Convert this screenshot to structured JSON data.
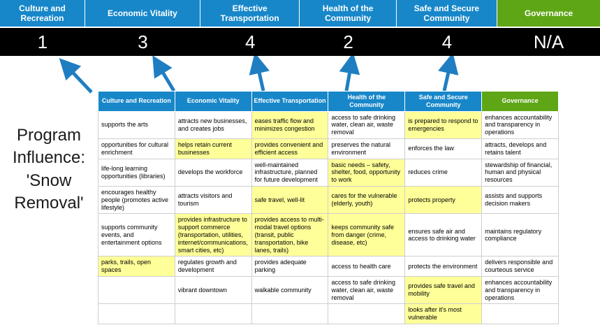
{
  "title": "Program Influence: 'Snow Removal'",
  "pillars": [
    {
      "label": "Culture and Recreation",
      "score": "1",
      "theme": "blue"
    },
    {
      "label": "Economic Vitality",
      "score": "3",
      "theme": "blue"
    },
    {
      "label": "Effective Transportation",
      "score": "4",
      "theme": "blue"
    },
    {
      "label": "Health of the Community",
      "score": "2",
      "theme": "blue"
    },
    {
      "label": "Safe and Secure Community",
      "score": "4",
      "theme": "blue"
    },
    {
      "label": "Governance",
      "score": "N/A",
      "theme": "green"
    }
  ],
  "matrix": {
    "headers": [
      {
        "label": "Culture and Recreation",
        "theme": "blue"
      },
      {
        "label": "Economic Vitality",
        "theme": "blue"
      },
      {
        "label": "Effective Transportation",
        "theme": "blue"
      },
      {
        "label": "Health of the Community",
        "theme": "blue"
      },
      {
        "label": "Safe and Secure Community",
        "theme": "blue"
      },
      {
        "label": "Governance",
        "theme": "green"
      }
    ],
    "rows": [
      [
        {
          "text": "supports the arts",
          "highlight": false
        },
        {
          "text": "attracts new businesses, and creates jobs",
          "highlight": false
        },
        {
          "text": "eases traffic flow and minimizes congestion",
          "highlight": true
        },
        {
          "text": "access to safe drinking water, clean air, waste removal",
          "highlight": false
        },
        {
          "text": "is prepared to respond to emergencies",
          "highlight": true
        },
        {
          "text": "enhances accountability and transparency in operations",
          "highlight": false
        }
      ],
      [
        {
          "text": "opportunities for cultural enrichment",
          "highlight": false
        },
        {
          "text": "helps retain current businesses",
          "highlight": true
        },
        {
          "text": "provides convenient and efficient access",
          "highlight": true
        },
        {
          "text": "preserves the natural environment",
          "highlight": false
        },
        {
          "text": "enforces the law",
          "highlight": false
        },
        {
          "text": "attracts, develops and retains talent",
          "highlight": false
        }
      ],
      [
        {
          "text": "life-long learning opportunities (libraries)",
          "highlight": false
        },
        {
          "text": "develops the workforce",
          "highlight": false
        },
        {
          "text": "well-maintained infrastructure, planned for future development",
          "highlight": false
        },
        {
          "text": "basic needs – safety, shelter, food, opportunity to work",
          "highlight": true
        },
        {
          "text": "reduces crime",
          "highlight": false
        },
        {
          "text": "stewardship of financial, human and physical resources",
          "highlight": false
        }
      ],
      [
        {
          "text": "encourages healthy people (promotes active lifestyle)",
          "highlight": false
        },
        {
          "text": "attracts visitors and tourism",
          "highlight": false
        },
        {
          "text": "safe travel, well-lit",
          "highlight": true
        },
        {
          "text": "cares for the vulnerable (elderly, youth)",
          "highlight": true
        },
        {
          "text": "protects property",
          "highlight": true
        },
        {
          "text": "assists and supports decision makers",
          "highlight": false
        }
      ],
      [
        {
          "text": "supports community events, and entertainment options",
          "highlight": false
        },
        {
          "text": "provides infrastructure to support commerce (transportation, utilities, internet/communications, smart cities, etc)",
          "highlight": true
        },
        {
          "text": "provides access to multi-modal travel options (transit, public transportation, bike lanes, trails)",
          "highlight": true
        },
        {
          "text": "keeps community safe from danger (crime, disease, etc)",
          "highlight": true
        },
        {
          "text": "ensures safe air and access to drinking water",
          "highlight": false
        },
        {
          "text": "maintains regulatory compliance",
          "highlight": false
        }
      ],
      [
        {
          "text": "parks, trails, open spaces",
          "highlight": true
        },
        {
          "text": "regulates growth and development",
          "highlight": false
        },
        {
          "text": "provides adequate parking",
          "highlight": false
        },
        {
          "text": "access to health care",
          "highlight": false
        },
        {
          "text": "protects the environment",
          "highlight": false
        },
        {
          "text": "delivers responsible and courteous service",
          "highlight": false
        }
      ],
      [
        {
          "text": "",
          "highlight": false
        },
        {
          "text": "vibrant downtown",
          "highlight": false
        },
        {
          "text": "walkable community",
          "highlight": false
        },
        {
          "text": "access to safe drinking water, clean air, waste removal",
          "highlight": false
        },
        {
          "text": "provides safe travel and mobility",
          "highlight": true
        },
        {
          "text": "enhances accountability and transparency in operations",
          "highlight": false
        }
      ],
      [
        {
          "text": "",
          "highlight": false
        },
        {
          "text": "",
          "highlight": false
        },
        {
          "text": "",
          "highlight": false
        },
        {
          "text": "",
          "highlight": false
        },
        {
          "text": "looks after it's most vulnerable",
          "highlight": true
        },
        {
          "text": "",
          "highlight": false
        }
      ]
    ]
  },
  "colors": {
    "header_blue": "#1787c9",
    "header_green": "#5ea616",
    "score_band_bg": "#000000",
    "score_text": "#ffffff",
    "highlight": "#ffff99",
    "arrow": "#1f7ec2"
  }
}
